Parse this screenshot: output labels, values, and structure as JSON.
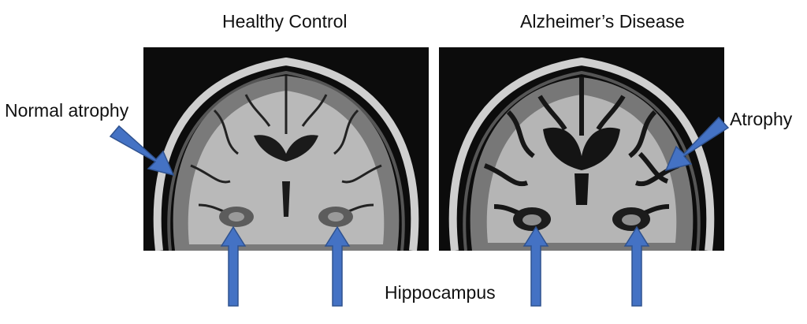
{
  "titles": {
    "left": "Healthy Control",
    "right": "Alzheimer’s Disease"
  },
  "labels": {
    "normal_atrophy": "Normal atrophy",
    "atrophy": "Atrophy",
    "hippocampus": "Hippocampus"
  },
  "colors": {
    "arrow": "#4472c4",
    "arrow_outline": "#2f528f",
    "scan_background": "#0c0c0c",
    "white_matter": "#b9b9b9",
    "gray_matter": "#7a7a7a",
    "csf": "#1a1a1a",
    "skull": "#cfcfcf"
  },
  "icons": [
    "arrow-icon"
  ]
}
